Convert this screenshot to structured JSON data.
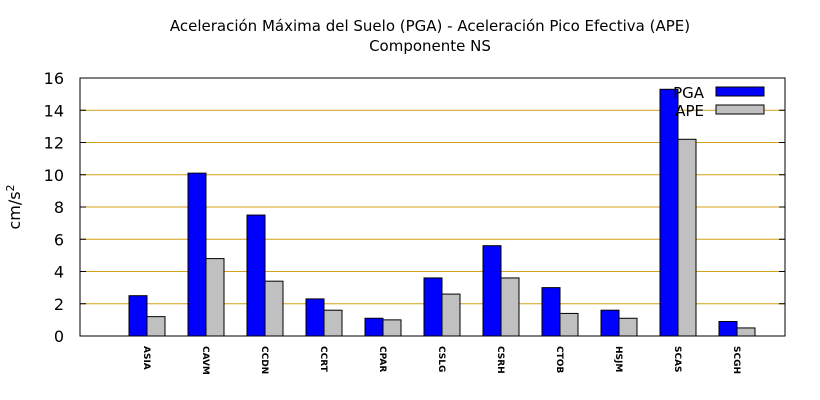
{
  "chart_data": {
    "type": "bar",
    "title_line1": "Aceleración Máxima del Suelo (PGA) -  Aceleración Pico Efectiva (APE)",
    "title_line2": "Componente NS",
    "ylabel": "cm/s",
    "ylabel_sup": "2",
    "xlabel": "",
    "ylim": [
      0,
      16
    ],
    "yticks": [
      0,
      2,
      4,
      6,
      8,
      10,
      12,
      14,
      16
    ],
    "grid": true,
    "grid_color": "#d4a017",
    "legend_position": "top-right",
    "categories": [
      "ASIA",
      "CAVM",
      "CCDN",
      "CCRT",
      "CPAR",
      "CSLG",
      "CSRH",
      "CTOB",
      "HSJM",
      "SCAS",
      "SCGH"
    ],
    "series": [
      {
        "name": "PGA",
        "color": "#0000ff",
        "values": [
          2.5,
          10.1,
          7.5,
          2.3,
          1.1,
          3.6,
          5.6,
          3.0,
          1.6,
          15.3,
          0.9
        ]
      },
      {
        "name": "APE",
        "color": "#c0c0c0",
        "values": [
          1.2,
          4.8,
          3.4,
          1.6,
          1.0,
          2.6,
          3.6,
          1.4,
          1.1,
          12.2,
          0.5
        ]
      }
    ]
  }
}
